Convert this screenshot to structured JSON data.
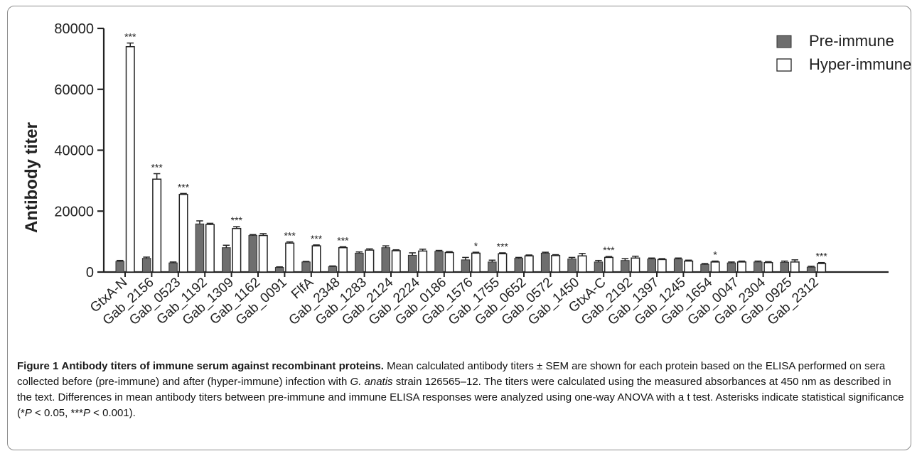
{
  "chart_data": {
    "type": "bar",
    "ylabel": "Antibody titer",
    "ylim": [
      0,
      80000
    ],
    "yticks": [
      "0",
      "20000",
      "40000",
      "60000",
      "80000"
    ],
    "legend_position": "top-right",
    "colors": {
      "pre": "#6e6e6e",
      "hyper": "#ffffff",
      "axis": "#222222"
    },
    "categories": [
      "GtxA-N",
      "Gab_2156",
      "Gab_0523",
      "Gab_1192",
      "Gab_1309",
      "Gab_1162",
      "Gab_0091",
      "FlfA",
      "Gab_2348",
      "Gab_1283",
      "Gab_2124",
      "Gab_2224",
      "Gab_0186",
      "Gab_1576",
      "Gab_1755",
      "Gab_0652",
      "Gab_0572",
      "Gab_1450",
      "GtxA-C",
      "Gab_2192",
      "Gab_1397",
      "Gab_1245",
      "Gab_1654",
      "Gab_0047",
      "Gab_2304",
      "Gab_0925",
      "Gab_2312"
    ],
    "series": [
      {
        "name": "Pre-immune",
        "values": [
          3500,
          4500,
          3000,
          15800,
          8000,
          12000,
          1500,
          3300,
          1800,
          6200,
          8000,
          5500,
          6800,
          4000,
          3300,
          4500,
          6200,
          4300,
          3300,
          3800,
          4300,
          4300,
          2500,
          3000,
          3300,
          3200,
          1600
        ],
        "errors": [
          300,
          400,
          300,
          1000,
          800,
          300,
          200,
          200,
          200,
          400,
          600,
          800,
          300,
          800,
          600,
          300,
          300,
          500,
          500,
          600,
          300,
          300,
          300,
          300,
          300,
          400,
          300
        ]
      },
      {
        "name": "Hyper-immune",
        "values": [
          74000,
          30500,
          25500,
          15600,
          14300,
          12000,
          9500,
          8600,
          8000,
          7200,
          7000,
          6900,
          6400,
          6200,
          6000,
          5300,
          5400,
          5300,
          4800,
          4600,
          4100,
          3600,
          3300,
          3300,
          3100,
          3300,
          2800
        ],
        "errors": [
          1200,
          1800,
          300,
          400,
          600,
          600,
          400,
          300,
          300,
          400,
          300,
          600,
          300,
          300,
          300,
          300,
          300,
          800,
          300,
          600,
          300,
          300,
          300,
          300,
          300,
          700,
          300
        ]
      }
    ],
    "significance": [
      "***",
      "***",
      "***",
      "",
      "***",
      "",
      "***",
      "***",
      "***",
      "",
      "",
      "",
      "",
      "*",
      "***",
      "",
      "",
      "",
      "***",
      "",
      "",
      "",
      "*",
      "",
      "",
      "",
      "***"
    ]
  },
  "caption": {
    "label": "Figure 1",
    "title": "Antibody titers of immune serum against recombinant proteins.",
    "text_1": "Mean calculated antibody titers ± SEM are shown for each protein based on the ELISA performed on sera collected before (pre-immune) and after (hyper-immune) infection with ",
    "species": "G. anatis",
    "text_2": " strain 126565–12. The titers were calculated using the measured absorbances at 450 nm as described in the text. Differences in mean antibody titers between pre-immune and immune ELISA responses were analyzed using one-way ANOVA with a t test. Asterisks indicate statistical significance (*",
    "p1": "P",
    "text_3": " < 0.05, ***",
    "p2": "P",
    "text_4": " < 0.001)."
  }
}
